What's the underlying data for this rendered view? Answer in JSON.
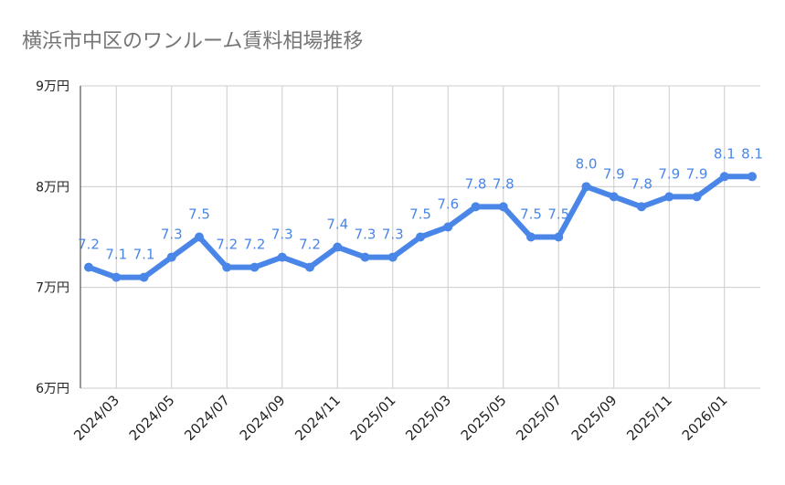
{
  "chart_data": {
    "type": "line",
    "title": "横浜市中区のワンルーム賃料相場推移",
    "categories": [
      null,
      "2024/03",
      null,
      "2024/05",
      null,
      "2024/07",
      null,
      "2024/09",
      null,
      "2024/11",
      null,
      "2025/01",
      null,
      "2025/03",
      null,
      "2025/05",
      null,
      "2025/07",
      null,
      "2025/09",
      null,
      "2025/11",
      null,
      "2026/01",
      null
    ],
    "series": [
      {
        "color": "#4a86e8",
        "values": [
          7.2,
          7.1,
          7.1,
          7.3,
          7.5,
          7.2,
          7.2,
          7.3,
          7.2,
          7.4,
          7.3,
          7.3,
          7.5,
          7.6,
          7.8,
          7.8,
          7.5,
          7.5,
          8.0,
          7.9,
          7.8,
          7.9,
          7.9,
          8.1,
          8.1
        ],
        "value_labels": [
          "7.2",
          "7.1",
          "7.1",
          "7.3",
          "7.5",
          "7.2",
          "7.2",
          "7.3",
          "7.2",
          "7.4",
          "7.3",
          "7.3",
          "7.5",
          "7.6",
          "7.8",
          "7.8",
          "7.5",
          "7.5",
          "8.0",
          "7.9",
          "7.8",
          "7.9",
          "7.9",
          "8.1",
          "8.1"
        ]
      }
    ],
    "ylim": [
      6,
      9
    ],
    "yticks": [
      {
        "value": 6,
        "label": "6万円"
      },
      {
        "value": 7,
        "label": "7万円"
      },
      {
        "value": 8,
        "label": "8万円"
      },
      {
        "value": 9,
        "label": "9万円"
      }
    ],
    "grid": true
  }
}
